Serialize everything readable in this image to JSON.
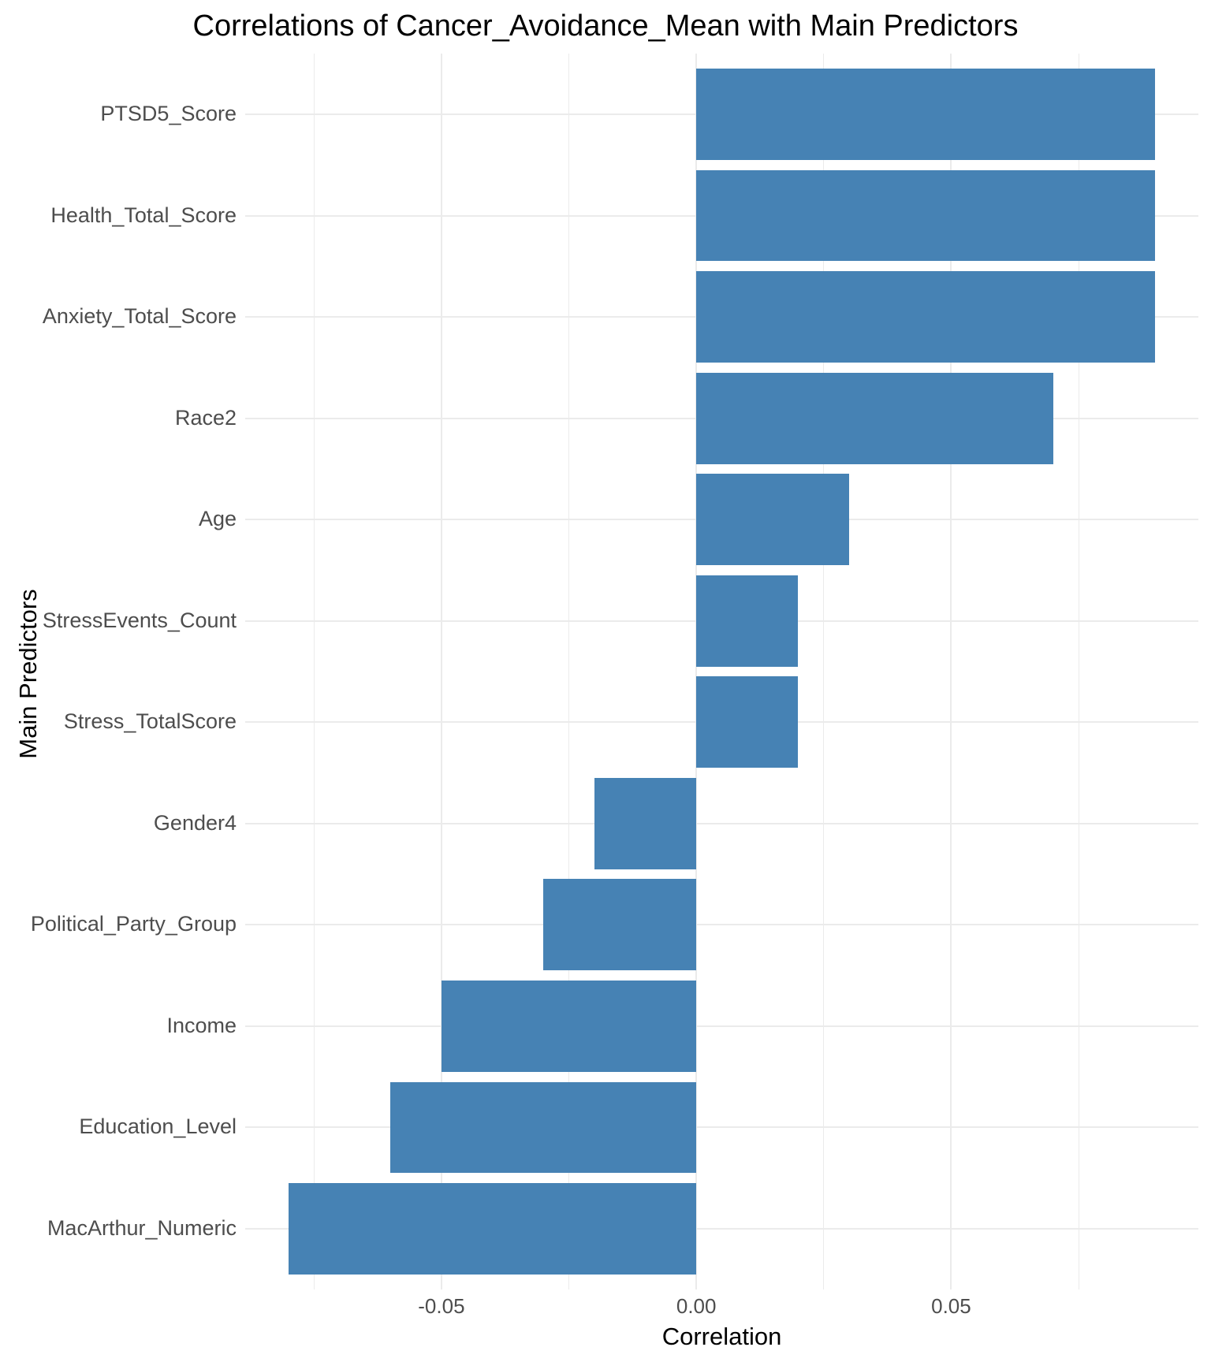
{
  "chart_data": {
    "type": "bar",
    "orientation": "horizontal",
    "title": "Correlations of Cancer_Avoidance_Mean with Main Predictors",
    "xlabel": "Correlation",
    "ylabel": "Main Predictors",
    "categories": [
      "PTSD5_Score",
      "Health_Total_Score",
      "Anxiety_Total_Score",
      "Race2",
      "Age",
      "StressEvents_Count",
      "Stress_TotalScore",
      "Gender4",
      "Political_Party_Group",
      "Income",
      "Education_Level",
      "MacArthur_Numeric"
    ],
    "values": [
      0.09,
      0.09,
      0.09,
      0.07,
      0.03,
      0.02,
      0.02,
      -0.02,
      -0.03,
      -0.05,
      -0.06,
      -0.08
    ],
    "xlim": [
      -0.0885,
      0.0985
    ],
    "x_major_ticks": [
      -0.05,
      0.0,
      0.05
    ],
    "x_tick_labels": [
      "-0.05",
      "0.00",
      "0.05"
    ],
    "x_minor_ticks": [
      -0.075,
      -0.025,
      0.025,
      0.075
    ],
    "grid": true,
    "legend_position": "none",
    "colors": {
      "bar": "#4682b4",
      "grid_major": "#ebebeb",
      "grid_minor": "#ebebeb",
      "tick_text": "#4d4d4d",
      "title_text": "#000000",
      "background": "#ffffff"
    }
  }
}
